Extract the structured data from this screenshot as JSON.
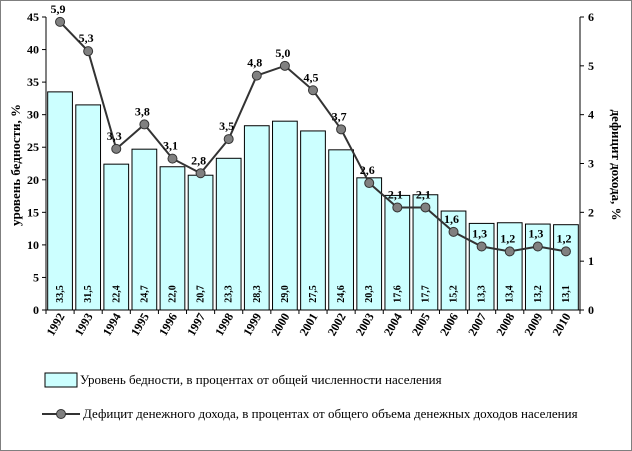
{
  "colors": {
    "bar_fill": "#ccffff",
    "bar_stroke": "#000000",
    "line": "#333333",
    "marker": "#808080",
    "background": "#ffffff"
  },
  "chart_data": {
    "type": "bar",
    "categories": [
      "1992",
      "1993",
      "1994",
      "1995",
      "1996",
      "1997",
      "1998",
      "1999",
      "2000",
      "2001",
      "2002",
      "2003",
      "2004",
      "2005",
      "2006",
      "2007",
      "2008",
      "2009",
      "2010"
    ],
    "series": [
      {
        "name": "Уровень бедности, в процентах от общей численности населения",
        "type": "bar",
        "axis": "left",
        "values": [
          33.5,
          31.5,
          22.4,
          24.7,
          22.0,
          20.7,
          23.3,
          28.3,
          29.0,
          27.5,
          24.6,
          20.3,
          17.6,
          17.7,
          15.2,
          13.3,
          13.4,
          13.2,
          13.1
        ],
        "labels": [
          "33,5",
          "31,5",
          "22,4",
          "24,7",
          "22,0",
          "20,7",
          "23,3",
          "28,3",
          "29,0",
          "27,5",
          "24,6",
          "20,3",
          "17,6",
          "17,7",
          "15,2",
          "13,3",
          "13,4",
          "13,2",
          "13,1"
        ]
      },
      {
        "name": "Дефицит денежного дохода, в процентах от общего объема денежных доходов населения",
        "type": "line",
        "axis": "right",
        "values": [
          5.9,
          5.3,
          3.3,
          3.8,
          3.1,
          2.8,
          3.5,
          4.8,
          5.0,
          4.5,
          3.7,
          2.6,
          2.1,
          2.1,
          1.6,
          1.3,
          1.2,
          1.3,
          1.2
        ],
        "labels": [
          "5,9",
          "5,3",
          "3,3",
          "3,8",
          "3,1",
          "2,8",
          "3,5",
          "4,8",
          "5,0",
          "4,5",
          "3,7",
          "2,6",
          "2,1",
          "2,1",
          "1,6",
          "1,3",
          "1,2",
          "1,3",
          "1,2"
        ]
      }
    ],
    "ylabel": "уровень бедности, %",
    "y2label": "дефицит дохода, %",
    "ylim": [
      0,
      45
    ],
    "y2lim": [
      0,
      6
    ],
    "yticks": [
      "0",
      "5",
      "10",
      "15",
      "20",
      "25",
      "30",
      "35",
      "40",
      "45"
    ],
    "y2ticks": [
      "0",
      "1",
      "2",
      "3",
      "4",
      "5",
      "6"
    ],
    "grid": false,
    "legend_placement": "bottom"
  }
}
